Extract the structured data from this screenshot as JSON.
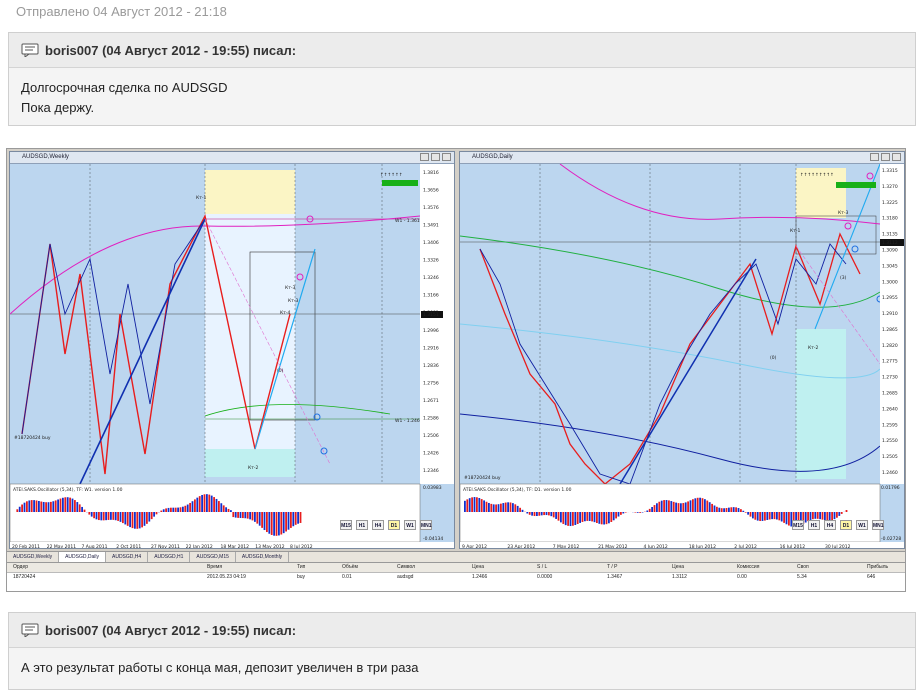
{
  "post": {
    "sent_date": "Отправлено 04 Август 2012 - 21:18"
  },
  "quote1": {
    "author_line": "boris007 (04 Август 2012 - 19:55) писал:",
    "line1": "Долгосрочная сделка по AUDSGD",
    "line2": "Пока держу."
  },
  "quote2": {
    "author_line": "boris007 (04 Август 2012 - 19:55) писал:",
    "line1": "А это результат работы с конца мая, депозит увеличен в три раза"
  },
  "screenshot": {
    "left_chart": {
      "title": "AUDSGD,Weekly",
      "oscillator_label": "ATEI.SAKS.Oscillator (5,34), TF: W1. version 1.00",
      "order_label": "#18720424 buy",
      "labels": {
        "kt1": "Кт-1",
        "kt2": "Кт-2",
        "kt3": "Кт-3",
        "kt3b": "Кт-3",
        "kt4": "Кт-4",
        "zero": "(0)",
        "w1_top": "W1 - 1.3610",
        "w1_bottom": "W1 - 1.2466"
      },
      "price_scale": [
        "1.3816",
        "1.3656",
        "1.3576",
        "1.3491",
        "1.3406",
        "1.3326",
        "1.3246",
        "1.3166",
        "1.3081",
        "1.2996",
        "1.2916",
        "1.2836",
        "1.2756",
        "1.2671",
        "1.2586",
        "1.2506",
        "1.2426",
        "1.2346"
      ],
      "price_now": "1.3151",
      "osc_scale": [
        "0.03983",
        "-0.04134"
      ],
      "dates": [
        "20 Feb 2011",
        "22 May 2011",
        "7 Aug 2011",
        "2 Oct 2011",
        "27 Nov 2011",
        "22 Jan 2012",
        "18 Mar 2012",
        "13 May 2012",
        "8 Jul 2012"
      ]
    },
    "right_chart": {
      "title": "AUDSGD,Daily",
      "oscillator_label": "ATEI.SAKS.Oscillator (5,34), TF: D1. version 1.00",
      "order_label": "#18720424 buy",
      "labels": {
        "kt1": "Кт-1",
        "kt2": "Кт-2",
        "kt3": "Кт-3",
        "zero": "(0)",
        "three": "(3)"
      },
      "price_scale": [
        "1.3315",
        "1.3270",
        "1.3225",
        "1.3180",
        "1.3135",
        "1.3090",
        "1.3045",
        "1.3000",
        "1.2955",
        "1.2910",
        "1.2865",
        "1.2820",
        "1.2775",
        "1.2730",
        "1.2685",
        "1.2640",
        "1.2595",
        "1.2550",
        "1.2505",
        "1.2460"
      ],
      "price_now": "1.3112",
      "osc_scale": [
        "0.01796",
        "-0.02728"
      ],
      "dates": [
        "9 Apr 2012",
        "23 Apr 2012",
        "7 May 2012",
        "21 May 2012",
        "4 Jun 2012",
        "18 Jun 2012",
        "2 Jul 2012",
        "16 Jul 2012",
        "30 Jul 2012"
      ]
    },
    "timeframes": [
      "M15",
      "H1",
      "H4",
      "D1",
      "W1",
      "MN1"
    ],
    "tabs": [
      "AUDSGD,Weekly",
      "AUDSGD,Daily",
      "AUDSGD,H4",
      "AUDSGD,H1",
      "AUDSGD,M15",
      "AUDSGD,Monthly"
    ],
    "terminal": {
      "headers": [
        "Ордер",
        "Время",
        "Тип",
        "Объём",
        "Символ",
        "Цена",
        "S / L",
        "T / P",
        "Цена",
        "Комиссия",
        "Своп",
        "Прибыль"
      ],
      "row": [
        "18720424",
        "2012.05.23 04:19",
        "buy",
        "0.01",
        "audsgd",
        "1.2466",
        "0.0000",
        "1.3467",
        "1.3112",
        "0.00",
        "5.34",
        "646"
      ]
    }
  }
}
